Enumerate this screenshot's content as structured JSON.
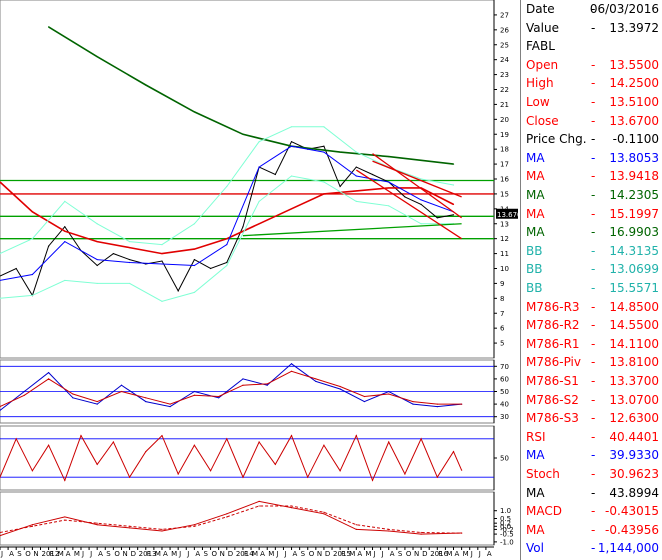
{
  "chart_data": [
    {
      "type": "line",
      "panel": "price",
      "ylim": [
        4,
        28
      ],
      "y_ticks": [
        5,
        6,
        7,
        8,
        9,
        10,
        11,
        12,
        13,
        14,
        15,
        16,
        17,
        18,
        19,
        20,
        21,
        22,
        23,
        24,
        25,
        26,
        27
      ],
      "last_price_tag": "13.6700",
      "colors": {
        "price": "#000000",
        "ma_blue": "#0000ff",
        "ma_cyan": "#20b2aa",
        "ma_green": "#006400",
        "ma_red": "#e00000",
        "bb": "#7fffd4",
        "grid_green": "#00a000",
        "grid_red": "#e00000"
      },
      "x_months": [
        "2011-07",
        "2011-08",
        "2011-09",
        "2011-10",
        "2011-11",
        "2011-12",
        "2012-01",
        "2012-02",
        "2012-03",
        "2012-04",
        "2012-05",
        "2012-06",
        "2012-07",
        "2012-08",
        "2012-09",
        "2012-10",
        "2012-11",
        "2012-12",
        "2013-01",
        "2013-02",
        "2013-03",
        "2013-04",
        "2013-05",
        "2013-06",
        "2013-07",
        "2013-08",
        "2013-09",
        "2013-10",
        "2013-11",
        "2013-12",
        "2014-01",
        "2014-02",
        "2014-03",
        "2014-04",
        "2014-05",
        "2014-06",
        "2014-07",
        "2014-08",
        "2014-09",
        "2014-10",
        "2014-11",
        "2014-12",
        "2015-01",
        "2015-02",
        "2015-03",
        "2015-04",
        "2015-05",
        "2015-06",
        "2015-07",
        "2015-08",
        "2015-09",
        "2015-10",
        "2015-11",
        "2015-12",
        "2016-01",
        "2016-02",
        "2016-03",
        "2016-04",
        "2016-05",
        "2016-06",
        "2016-07",
        "2016-08"
      ],
      "x_tick_labels": [
        "J",
        "A",
        "S",
        "O",
        "N",
        "2012",
        "F",
        "M",
        "A",
        "M",
        "J",
        "J",
        "A",
        "S",
        "O",
        "N",
        "D",
        "2013",
        "F",
        "M",
        "A",
        "M",
        "J",
        "J",
        "A",
        "S",
        "O",
        "N",
        "D",
        "2014",
        "F",
        "M",
        "A",
        "M",
        "J",
        "J",
        "A",
        "S",
        "O",
        "N",
        "D",
        "2015",
        "F",
        "M",
        "A",
        "M",
        "J",
        "J",
        "A",
        "S",
        "O",
        "N",
        "D",
        "2016",
        "F",
        "M",
        "A",
        "M",
        "J",
        "J",
        "A"
      ],
      "series": [
        {
          "key": "price",
          "x": [
            0,
            2,
            4,
            6,
            8,
            10,
            12,
            14,
            16,
            18,
            20,
            22,
            24,
            26,
            28,
            30,
            32,
            34,
            36,
            38,
            40,
            42,
            44,
            46,
            48,
            50,
            52,
            54,
            56
          ],
          "y": [
            9.5,
            10,
            8.2,
            11.5,
            12.8,
            11.2,
            10.2,
            11,
            10.6,
            10.3,
            10.5,
            8.5,
            10.6,
            10,
            10.4,
            12.8,
            16.8,
            16.3,
            18.5,
            18,
            18.2,
            15.5,
            16.8,
            16.3,
            15.8,
            14.8,
            14.3,
            13.4,
            13.6
          ]
        },
        {
          "key": "ma_long",
          "x": [
            6,
            12,
            18,
            24,
            30,
            36,
            42,
            48,
            56
          ],
          "y": [
            26.2,
            24.2,
            22.3,
            20.5,
            19,
            18.2,
            17.8,
            17.5,
            17
          ]
        },
        {
          "key": "ma_red",
          "x": [
            0,
            4,
            8,
            12,
            16,
            20,
            24,
            28,
            32,
            36,
            40,
            44,
            48,
            52,
            56
          ],
          "y": [
            15.8,
            13.8,
            12.5,
            11.8,
            11.4,
            11,
            11.3,
            12,
            13,
            14,
            15,
            15.2,
            15.4,
            15.4,
            14.3
          ]
        },
        {
          "key": "ma_blue",
          "x": [
            0,
            4,
            8,
            12,
            16,
            20,
            24,
            28,
            32,
            36,
            40,
            44,
            48,
            52,
            56
          ],
          "y": [
            9.2,
            9.6,
            11.8,
            10.6,
            10.4,
            10.3,
            10.2,
            11.6,
            16.8,
            18.2,
            17.8,
            16.2,
            15.8,
            14.6,
            13.8
          ]
        },
        {
          "key": "bb_upper",
          "x": [
            0,
            4,
            8,
            12,
            16,
            20,
            24,
            28,
            32,
            36,
            40,
            44,
            48,
            52,
            56
          ],
          "y": [
            11,
            12,
            14.5,
            13,
            11.8,
            11.6,
            13,
            15.5,
            18.5,
            19.5,
            19.5,
            17.8,
            16.8,
            16,
            15.6
          ]
        },
        {
          "key": "bb_lower",
          "x": [
            0,
            4,
            8,
            12,
            16,
            20,
            24,
            28,
            32,
            36,
            40,
            44,
            48,
            52,
            56
          ],
          "y": [
            8,
            8.2,
            9.2,
            9,
            9,
            7.8,
            8.4,
            10.2,
            14.5,
            16.2,
            15.8,
            14.5,
            14.2,
            13,
            13
          ]
        }
      ],
      "horizontal_lines": [
        {
          "y": 15.9,
          "color": "green"
        },
        {
          "y": 15.0,
          "color": "red"
        },
        {
          "y": 13.5,
          "color": "green"
        },
        {
          "y": 12.0,
          "color": "green"
        }
      ],
      "trendlines": [
        {
          "x": [
            30,
            57
          ],
          "y": [
            12.2,
            13.0
          ],
          "color": "green"
        },
        {
          "x": [
            46,
            57
          ],
          "y": [
            17.7,
            13.4
          ],
          "color": "red"
        },
        {
          "x": [
            44,
            57
          ],
          "y": [
            16.6,
            12.0
          ],
          "color": "red"
        },
        {
          "x": [
            46,
            57
          ],
          "y": [
            17.2,
            14.8
          ],
          "color": "red"
        }
      ]
    },
    {
      "type": "line",
      "panel": "rsi",
      "ylim": [
        25,
        75
      ],
      "y_ticks": [
        30,
        40,
        50,
        60,
        70
      ],
      "reference_lines": [
        70,
        50,
        30
      ],
      "series": [
        {
          "key": "rsi",
          "x": [
            0,
            3,
            6,
            9,
            12,
            15,
            18,
            21,
            24,
            27,
            30,
            33,
            36,
            39,
            42,
            45,
            48,
            51,
            54,
            57
          ],
          "y": [
            35,
            50,
            65,
            45,
            40,
            55,
            42,
            38,
            50,
            45,
            60,
            55,
            72,
            58,
            52,
            42,
            50,
            40,
            38,
            40
          ]
        },
        {
          "key": "rsi_ma",
          "x": [
            0,
            3,
            6,
            9,
            12,
            15,
            18,
            21,
            24,
            27,
            30,
            33,
            36,
            39,
            42,
            45,
            48,
            51,
            54,
            57
          ],
          "y": [
            38,
            47,
            60,
            48,
            42,
            50,
            45,
            40,
            47,
            46,
            55,
            56,
            66,
            60,
            54,
            46,
            48,
            42,
            40,
            40
          ]
        }
      ]
    },
    {
      "type": "line",
      "panel": "stochastic",
      "ylim": [
        0,
        100
      ],
      "y_ticks": [
        50
      ],
      "reference_lines": [
        80,
        20
      ],
      "series": [
        {
          "key": "stoch",
          "x": [
            0,
            2,
            4,
            6,
            8,
            10,
            12,
            14,
            16,
            18,
            20,
            22,
            24,
            26,
            28,
            30,
            32,
            34,
            36,
            38,
            40,
            42,
            44,
            46,
            48,
            50,
            52,
            54,
            56,
            57
          ],
          "y": [
            20,
            80,
            30,
            70,
            15,
            85,
            40,
            75,
            20,
            60,
            85,
            25,
            70,
            30,
            80,
            20,
            75,
            40,
            85,
            20,
            70,
            30,
            85,
            15,
            75,
            25,
            80,
            20,
            60,
            31
          ]
        }
      ]
    },
    {
      "type": "line",
      "panel": "macd",
      "ylim": [
        -1.2,
        2.2
      ],
      "y_ticks": [
        1.0,
        0.5,
        0.2,
        0.0,
        -0.2,
        -0.5,
        -1.0
      ],
      "y_tick_labels": [
        "1.0",
        "0.5",
        "0.2",
        "0.0",
        "-0.2",
        "-0.5",
        "-1.0"
      ],
      "series": [
        {
          "key": "macd",
          "x": [
            0,
            4,
            8,
            12,
            16,
            20,
            24,
            28,
            32,
            36,
            40,
            44,
            48,
            52,
            57
          ],
          "y": [
            -0.6,
            0.1,
            0.6,
            0.1,
            -0.1,
            -0.3,
            0.1,
            0.8,
            1.6,
            1.2,
            0.8,
            -0.2,
            -0.3,
            -0.5,
            -0.43
          ]
        },
        {
          "key": "macd_signal",
          "x": [
            0,
            4,
            8,
            12,
            16,
            20,
            24,
            28,
            32,
            36,
            40,
            44,
            48,
            52,
            57
          ],
          "y": [
            -0.4,
            0,
            0.4,
            0.2,
            0,
            -0.2,
            0,
            0.6,
            1.3,
            1.3,
            0.9,
            0.1,
            -0.2,
            -0.4,
            -0.44
          ]
        }
      ]
    }
  ],
  "data_window": [
    {
      "label": "Date",
      "value": "06/03/2016",
      "color": "#000000",
      "dash": "-"
    },
    {
      "label": "Value",
      "value": "13.3972",
      "color": "#000000",
      "dash": "-"
    },
    {
      "label": "FABL",
      "value": "",
      "color": "#000000",
      "dash": ""
    },
    {
      "label": "Open",
      "value": "13.5500",
      "color": "#ff0000",
      "dash": "-"
    },
    {
      "label": "High",
      "value": "14.2500",
      "color": "#ff0000",
      "dash": "-"
    },
    {
      "label": "Low",
      "value": "13.5100",
      "color": "#ff0000",
      "dash": "-"
    },
    {
      "label": "Close",
      "value": "13.6700",
      "color": "#ff0000",
      "dash": "-"
    },
    {
      "label": "Price Chg.",
      "value": "-0.1100",
      "color": "#000000",
      "dash": "-"
    },
    {
      "label": "MA",
      "value": "13.8053",
      "color": "#0000ff",
      "dash": "-"
    },
    {
      "label": "MA",
      "value": "13.9418",
      "color": "#ff0000",
      "dash": "-"
    },
    {
      "label": "MA",
      "value": "14.2305",
      "color": "#006400",
      "dash": "-"
    },
    {
      "label": "MA",
      "value": "15.1997",
      "color": "#ff0000",
      "dash": "-"
    },
    {
      "label": "MA",
      "value": "16.9903",
      "color": "#006400",
      "dash": "-"
    },
    {
      "label": "BB",
      "value": "14.3135",
      "color": "#20b2aa",
      "dash": "-"
    },
    {
      "label": "BB",
      "value": "13.0699",
      "color": "#20b2aa",
      "dash": "-"
    },
    {
      "label": "BB",
      "value": "15.5571",
      "color": "#20b2aa",
      "dash": "-"
    },
    {
      "label": "M786-R3",
      "value": "14.8500",
      "color": "#ff0000",
      "dash": "-"
    },
    {
      "label": "M786-R2",
      "value": "14.5500",
      "color": "#ff0000",
      "dash": "-"
    },
    {
      "label": "M786-R1",
      "value": "14.1100",
      "color": "#ff0000",
      "dash": "-"
    },
    {
      "label": "M786-Piv",
      "value": "13.8100",
      "color": "#ff0000",
      "dash": "-"
    },
    {
      "label": "M786-S1",
      "value": "13.3700",
      "color": "#ff0000",
      "dash": "-"
    },
    {
      "label": "M786-S2",
      "value": "13.0700",
      "color": "#ff0000",
      "dash": "-"
    },
    {
      "label": "M786-S3",
      "value": "12.6300",
      "color": "#ff0000",
      "dash": "-"
    },
    {
      "label": "RSI",
      "value": "40.4401",
      "color": "#ff0000",
      "dash": "-"
    },
    {
      "label": "MA",
      "value": "39.9330",
      "color": "#0000ff",
      "dash": "-"
    },
    {
      "label": "Stoch",
      "value": "30.9623",
      "color": "#ff0000",
      "dash": "-"
    },
    {
      "label": "MA",
      "value": "43.8994",
      "color": "#000000",
      "dash": "-"
    },
    {
      "label": "MACD",
      "value": "-0.43015",
      "color": "#ff0000",
      "dash": "-"
    },
    {
      "label": "MA",
      "value": "-0.43956",
      "color": "#ff0000",
      "dash": "-"
    },
    {
      "label": "Vol",
      "value": "1,144,000",
      "color": "#0000ff",
      "dash": "-"
    }
  ]
}
